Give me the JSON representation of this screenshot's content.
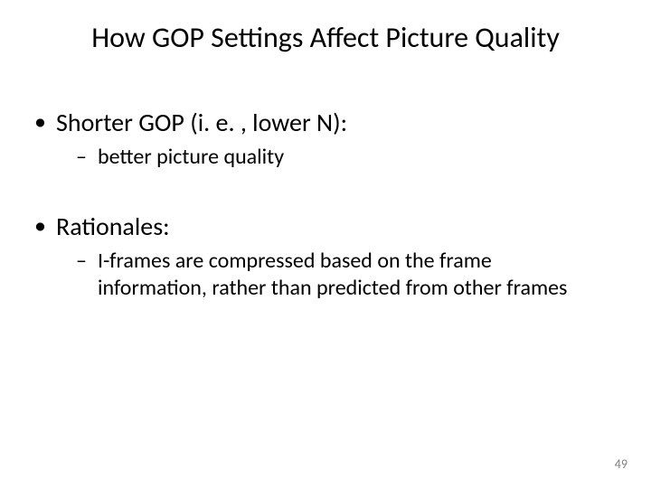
{
  "slide": {
    "title": "How GOP Settings Affect Picture Quality",
    "bullets": [
      {
        "level": 1,
        "text": "Shorter GOP (i. e. , lower N):"
      },
      {
        "level": 2,
        "text": "better picture quality"
      },
      {
        "level": 1,
        "text": "Rationales:"
      },
      {
        "level": 2,
        "text": "I-frames are compressed based on the frame information, rather than predicted from other frames"
      }
    ],
    "page_number": "49"
  },
  "style": {
    "background_color": "#ffffff",
    "text_color": "#000000",
    "page_number_color": "#808080",
    "title_fontsize": 32,
    "l1_fontsize": 28,
    "l2_fontsize": 24,
    "pagenum_fontsize": 14,
    "font_family": "Calibri, 'Segoe UI', Arial, sans-serif"
  }
}
